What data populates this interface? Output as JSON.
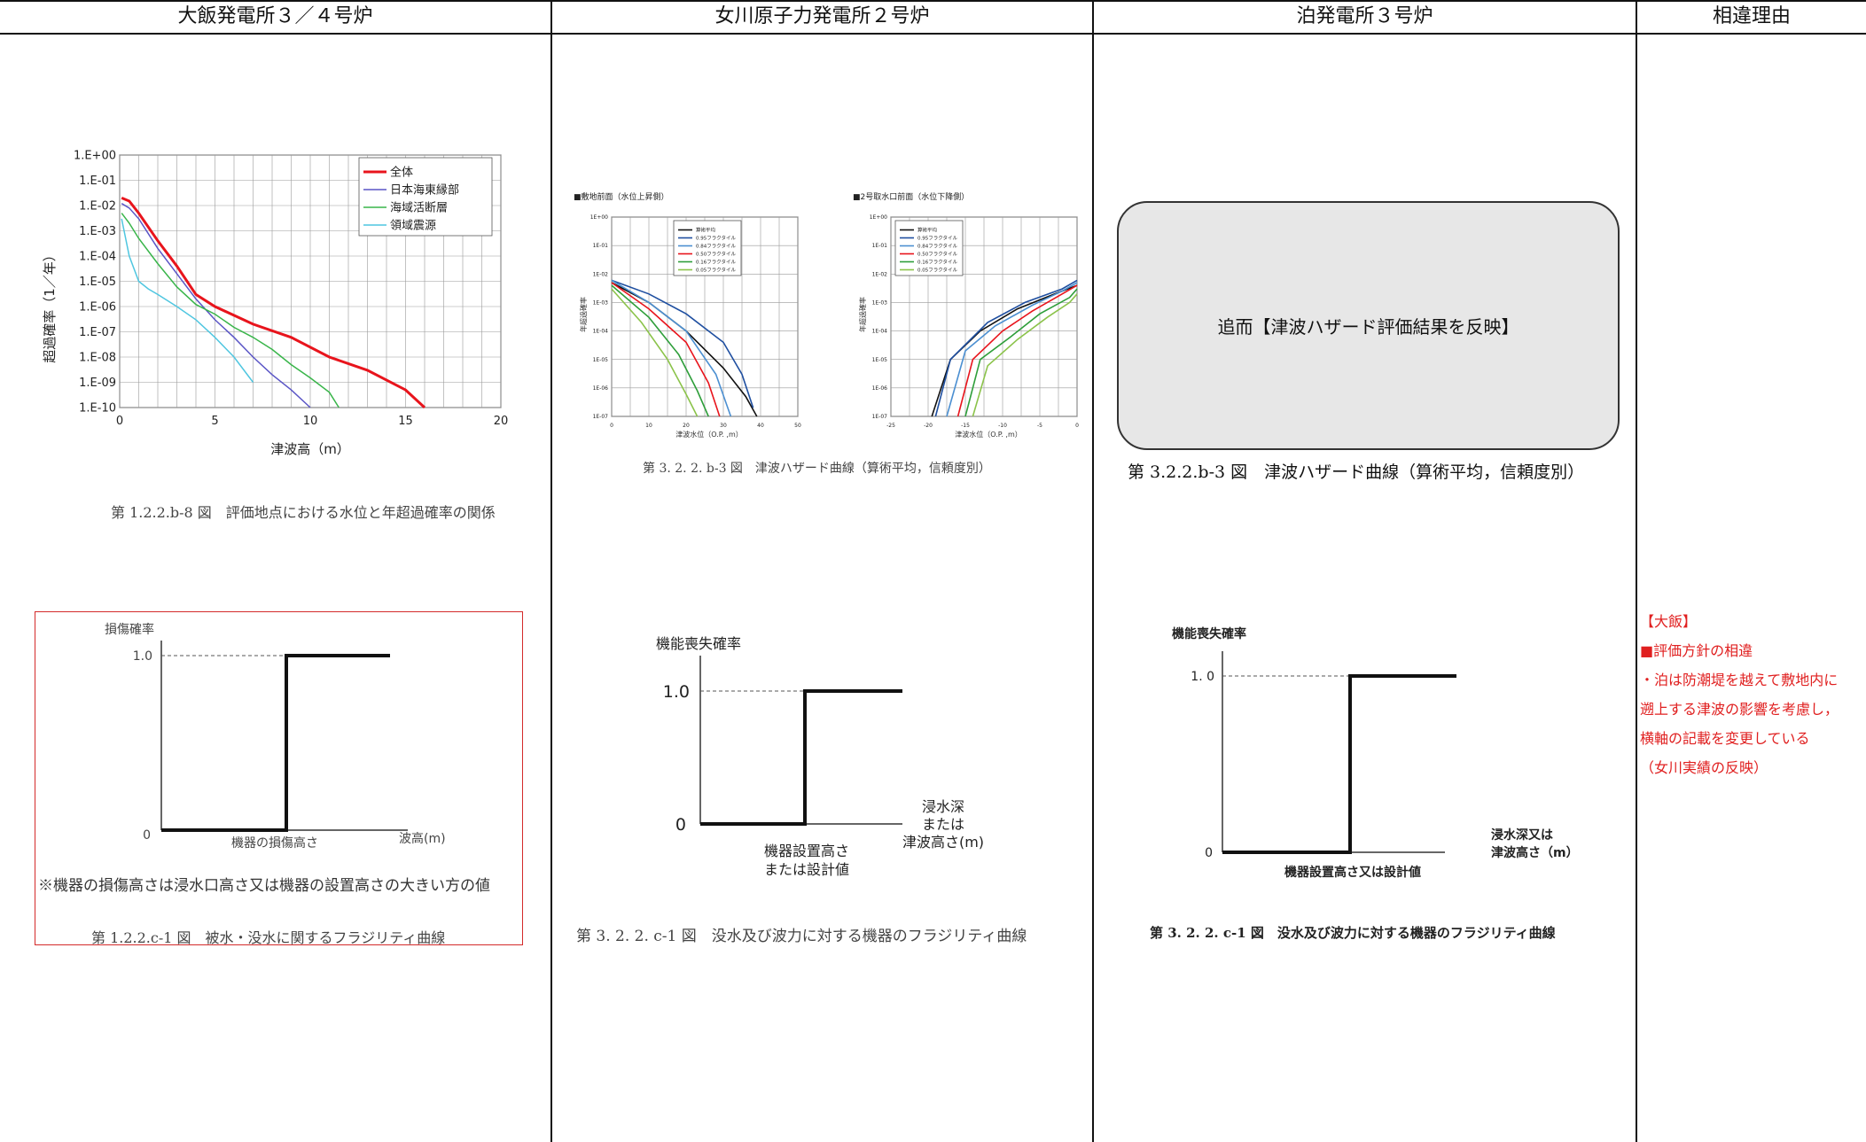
{
  "headers": [
    "大飯発電所３／４号炉",
    "女川原子力発電所２号炉",
    "泊発電所３号炉",
    "相違理由"
  ],
  "ohi": {
    "hazard_chart": {
      "ylabel": "超過確率（1／年）",
      "xlabel": "津波高（m）",
      "legend": [
        "全体",
        "日本海東縁部",
        "海域活断層",
        "領域震源"
      ],
      "caption": "第 1.2.2.b-8 図　評価地点における水位と年超過確率の関係"
    },
    "fragility": {
      "ylabel": "損傷確率",
      "y1": "1.0",
      "y0": "0",
      "xlabel_mid": "機器の損傷高さ",
      "xlabel_end": "波高(m)",
      "note": "※機器の損傷高さは浸水口高さ又は機器の設置高さの大きい方の値",
      "caption": "第 1.2.2.c-1 図　被水・没水に関するフラジリティ曲線"
    }
  },
  "onagawa": {
    "hazard_left": {
      "title": "■敷地前面（水位上昇側）",
      "xlabel": "津波水位（O.P. ,m）",
      "ylabel": "年超過確率",
      "legend": [
        "算術平均",
        "0.95フラクタイル",
        "0.84フラクタイル",
        "0.50フラクタイル",
        "0.16フラクタイル",
        "0.05フラクタイル"
      ]
    },
    "hazard_right": {
      "title": "■2号取水口前面（水位下降側）",
      "xlabel": "津波水位（O.P. ,m）",
      "ylabel": "年超過確率",
      "legend": [
        "算術平均",
        "0.95フラクタイル",
        "0.84フラクタイル",
        "0.50フラクタイル",
        "0.16フラクタイル",
        "0.05フラクタイル"
      ]
    },
    "hazard_caption": "第 3. 2. 2. b-3 図　津波ハザード曲線（算術平均，信頼度別）",
    "fragility": {
      "ylabel": "機能喪失確率",
      "y1": "1.0",
      "y0": "0",
      "xlabel_mid": [
        "機器設置高さ",
        "または設計値"
      ],
      "xlabel_end": [
        "浸水深",
        "または",
        "津波高さ(m)"
      ],
      "caption": "第 3. 2. 2. c-1 図　没水及び波力に対する機器のフラジリティ曲線"
    }
  },
  "tomari": {
    "pending_text": "追而【津波ハザード評価結果を反映】",
    "hazard_caption": "第 3.2.2.b-3 図　津波ハザード曲線（算術平均，信頼度別）",
    "fragility": {
      "ylabel": "機能喪失確率",
      "y1": "1. 0",
      "y0": "0",
      "xlabel_mid": "機器設置高さ又は設計値",
      "xlabel_end": [
        "浸水深又は",
        "津波高さ（m）"
      ],
      "caption": "第 3. 2. 2. c-1 図　没水及び波力に対する機器のフラジリティ曲線"
    }
  },
  "reason": {
    "lines": [
      "【大飯】",
      "■評価方針の相違",
      "・泊は防潮堤を越えて敷地内に",
      "遡上する津波の影響を考慮し，",
      "横軸の記載を変更している",
      "（女川実績の反映）"
    ]
  },
  "chart_data": [
    {
      "type": "line",
      "ylabel": "超過確率（1／年）",
      "xlabel": "津波高（m）",
      "xlim": [
        0,
        20
      ],
      "ylim": [
        1e-10,
        1
      ],
      "yscale": "log",
      "xticks": [
        0,
        5,
        10,
        15,
        20
      ],
      "yticks": [
        "1.E+00",
        "1.E-01",
        "1.E-02",
        "1.E-03",
        "1.E-04",
        "1.E-05",
        "1.E-06",
        "1.E-07",
        "1.E-08",
        "1.E-09",
        "1.E-10"
      ],
      "legend_position": "top-right",
      "grid": true,
      "series": [
        {
          "name": "全体",
          "color": "#e8141c",
          "x": [
            0.1,
            0.5,
            1,
            2,
            3,
            4,
            5,
            7,
            9,
            11,
            13,
            15,
            16
          ],
          "y": [
            0.02,
            0.015,
            0.005,
            0.0004,
            4e-05,
            3e-06,
            1e-06,
            2e-07,
            6e-08,
            1e-08,
            3e-09,
            5e-10,
            1e-10
          ]
        },
        {
          "name": "日本海東縁部",
          "color": "#5a55c6",
          "x": [
            0.1,
            0.5,
            1,
            2,
            3,
            4,
            5,
            6,
            7,
            8,
            9,
            10
          ],
          "y": [
            0.012,
            0.008,
            0.003,
            0.0002,
            2e-05,
            2e-06,
            3e-07,
            6e-08,
            1e-08,
            2e-09,
            5e-10,
            1e-10
          ]
        },
        {
          "name": "海域活断層",
          "color": "#39b54a",
          "x": [
            0.1,
            0.5,
            1,
            2,
            3,
            4,
            5,
            6,
            7,
            8,
            9,
            10,
            11,
            11.5
          ],
          "y": [
            0.005,
            0.002,
            0.0005,
            5e-05,
            6e-06,
            1.2e-06,
            5e-07,
            1.5e-07,
            6e-08,
            2e-08,
            5e-09,
            1.5e-09,
            4e-10,
            1e-10
          ]
        },
        {
          "name": "領域震源",
          "color": "#4fc6e0",
          "x": [
            0.1,
            0.5,
            1,
            1.5,
            2,
            3,
            4,
            5,
            6,
            7
          ],
          "y": [
            0.003,
            0.0001,
            1e-05,
            5e-06,
            3e-06,
            1e-06,
            3e-07,
            6e-08,
            1e-08,
            1e-09
          ]
        }
      ]
    },
    {
      "type": "line",
      "title": "■敷地前面（水位上昇側）",
      "xlabel": "津波水位（O.P. ,m）",
      "ylabel": "年超過確率",
      "xlim": [
        0,
        50
      ],
      "ylim": [
        1e-07,
        1
      ],
      "yscale": "log",
      "xticks": [
        0,
        10,
        20,
        30,
        40,
        50
      ],
      "yticks": [
        "1E+00",
        "1E-01",
        "1E-02",
        "1E-03",
        "1E-04",
        "1E-05",
        "1E-06",
        "1E-07"
      ],
      "grid": true,
      "series": [
        {
          "name": "算術平均",
          "color": "#111111",
          "x": [
            0,
            10,
            20,
            30,
            36,
            39
          ],
          "y": [
            0.005,
            0.001,
            0.0001,
            5e-06,
            5e-07,
            1e-07
          ]
        },
        {
          "name": "0.95フラクタイル",
          "color": "#1f4fa0",
          "x": [
            0,
            10,
            20,
            30,
            35,
            38
          ],
          "y": [
            0.006,
            0.002,
            0.0004,
            4e-05,
            3e-06,
            2e-07
          ]
        },
        {
          "name": "0.84フラクタイル",
          "color": "#4b8fd1",
          "x": [
            0,
            10,
            20,
            28,
            32
          ],
          "y": [
            0.006,
            0.001,
            0.0001,
            3e-06,
            1e-07
          ]
        },
        {
          "name": "0.50フラクタイル",
          "color": "#e8141c",
          "x": [
            0,
            10,
            20,
            26,
            29
          ],
          "y": [
            0.005,
            0.0006,
            4e-05,
            1.5e-06,
            1e-07
          ]
        },
        {
          "name": "0.16フラクタイル",
          "color": "#2e9e3a",
          "x": [
            0,
            10,
            18,
            23,
            26
          ],
          "y": [
            0.004,
            0.0003,
            1.5e-05,
            8e-07,
            1e-07
          ]
        },
        {
          "name": "0.05フラクタイル",
          "color": "#8bc34a",
          "x": [
            0,
            8,
            15,
            20,
            23
          ],
          "y": [
            0.003,
            0.0002,
            1e-05,
            6e-07,
            1e-07
          ]
        }
      ]
    },
    {
      "type": "line",
      "title": "■2号取水口前面（水位下降側）",
      "xlabel": "津波水位（O.P. ,m）",
      "ylabel": "年超過確率",
      "xlim": [
        -25,
        0
      ],
      "ylim": [
        1e-07,
        1
      ],
      "yscale": "log",
      "xticks": [
        -25,
        -20,
        -15,
        -10,
        -5,
        0
      ],
      "yticks": [
        "1E+00",
        "1E-01",
        "1E-02",
        "1E-03",
        "1E-04",
        "1E-05",
        "1E-06",
        "1E-07"
      ],
      "grid": true,
      "series": [
        {
          "name": "算術平均",
          "color": "#111111",
          "x": [
            -19.5,
            -17,
            -13,
            -8,
            -3,
            0
          ],
          "y": [
            1e-07,
            1e-05,
            0.0001,
            0.0006,
            0.002,
            0.004
          ]
        },
        {
          "name": "0.95フラクタイル",
          "color": "#1f4fa0",
          "x": [
            -19,
            -17,
            -12,
            -7,
            -2,
            0
          ],
          "y": [
            1e-07,
            1e-05,
            0.0002,
            0.001,
            0.003,
            0.006
          ]
        },
        {
          "name": "0.84フラクタイル",
          "color": "#4b8fd1",
          "x": [
            -17.5,
            -15,
            -11,
            -6,
            -2,
            0
          ],
          "y": [
            1e-07,
            2e-05,
            0.00015,
            0.0008,
            0.0025,
            0.005
          ]
        },
        {
          "name": "0.50フラクタイル",
          "color": "#e8141c",
          "x": [
            -16,
            -14,
            -10,
            -6,
            -2,
            0
          ],
          "y": [
            1e-07,
            1e-05,
            0.0001,
            0.0005,
            0.002,
            0.004
          ]
        },
        {
          "name": "0.16フラクタイル",
          "color": "#2e9e3a",
          "x": [
            -15,
            -13,
            -9,
            -5,
            -1,
            0
          ],
          "y": [
            1e-07,
            1e-05,
            6e-05,
            0.0004,
            0.0015,
            0.003
          ]
        },
        {
          "name": "0.05フラクタイル",
          "color": "#8bc34a",
          "x": [
            -14,
            -12,
            -8,
            -4,
            -1,
            0
          ],
          "y": [
            1e-07,
            6e-06,
            5e-05,
            0.0003,
            0.001,
            0.002
          ]
        }
      ]
    }
  ]
}
